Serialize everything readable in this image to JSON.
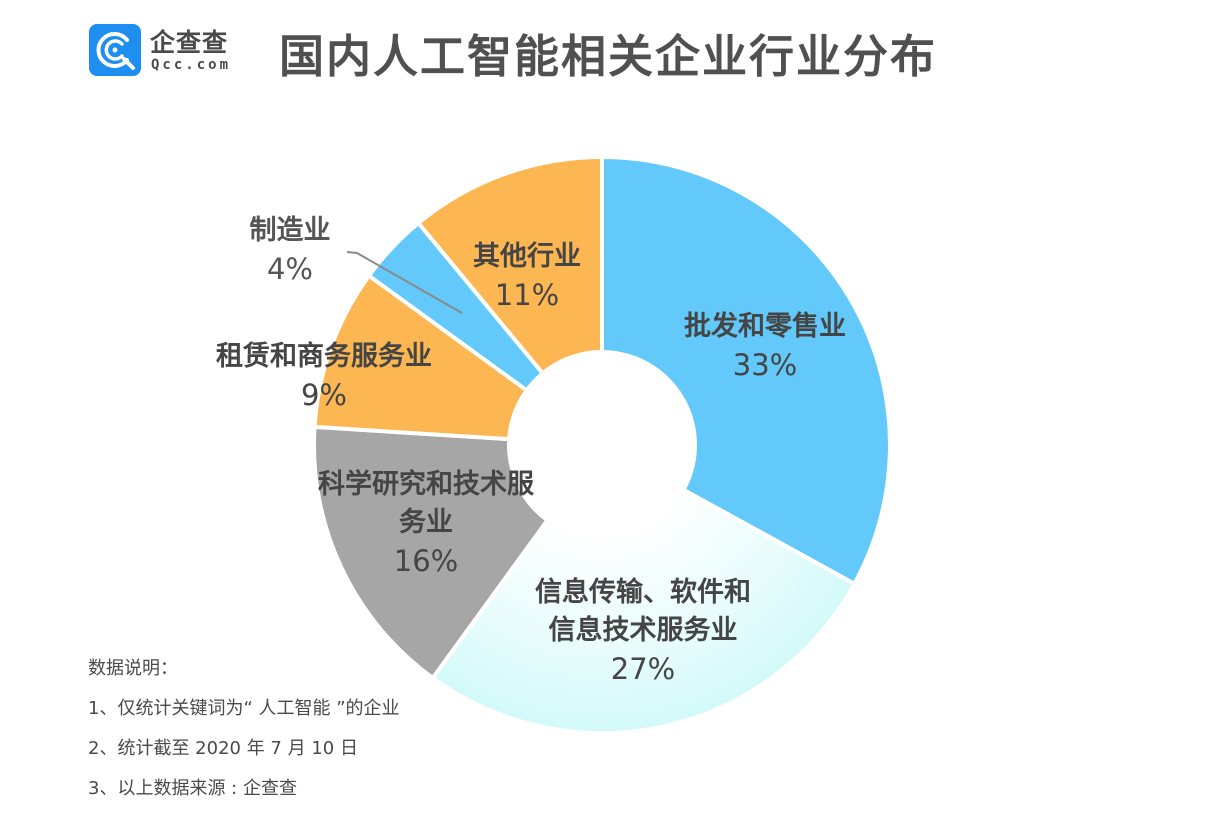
{
  "brand": {
    "name_cn": "企查查",
    "name_en": "Qcc.com",
    "logo_color": "#1e8ef0"
  },
  "title": "国内人工智能相关企业行业分布",
  "chart_data": {
    "type": "pie",
    "variant": "donut",
    "title": "国内人工智能相关企业行业分布",
    "start_angle": "12 o'clock, clockwise",
    "categories": [
      "批发和零售业",
      "信息传输、软件和信息技术服务业",
      "科学研究和技术服务业",
      "租赁和商务服务业",
      "制造业",
      "其他行业"
    ],
    "values": [
      33,
      27,
      16,
      9,
      4,
      11
    ],
    "unit": "%",
    "colors": [
      "#62c9fa",
      "#d6fafa",
      "#a6a6a6",
      "#fdb752",
      "#62c9fa",
      "#fdb752"
    ],
    "labels": [
      {
        "lines": [
          "批发和零售业"
        ],
        "pct": "33%"
      },
      {
        "lines": [
          "信息传输、软件和",
          "信息技术服务业"
        ],
        "pct": "27%"
      },
      {
        "lines": [
          "科学研究和技术服",
          "务业"
        ],
        "pct": "16%"
      },
      {
        "lines": [
          "租赁和商务服务业"
        ],
        "pct": "9%"
      },
      {
        "lines": [
          "制造业"
        ],
        "pct": "4%"
      },
      {
        "lines": [
          "其他行业"
        ],
        "pct": "11%"
      }
    ]
  },
  "notes": {
    "heading": "数据说明：",
    "items": [
      "1、仅统计关键词为“ 人工智能 ”的企业",
      "2、统计截至 2020 年 7 月 10 日",
      "3、以上数据来源 : 企查查"
    ]
  }
}
